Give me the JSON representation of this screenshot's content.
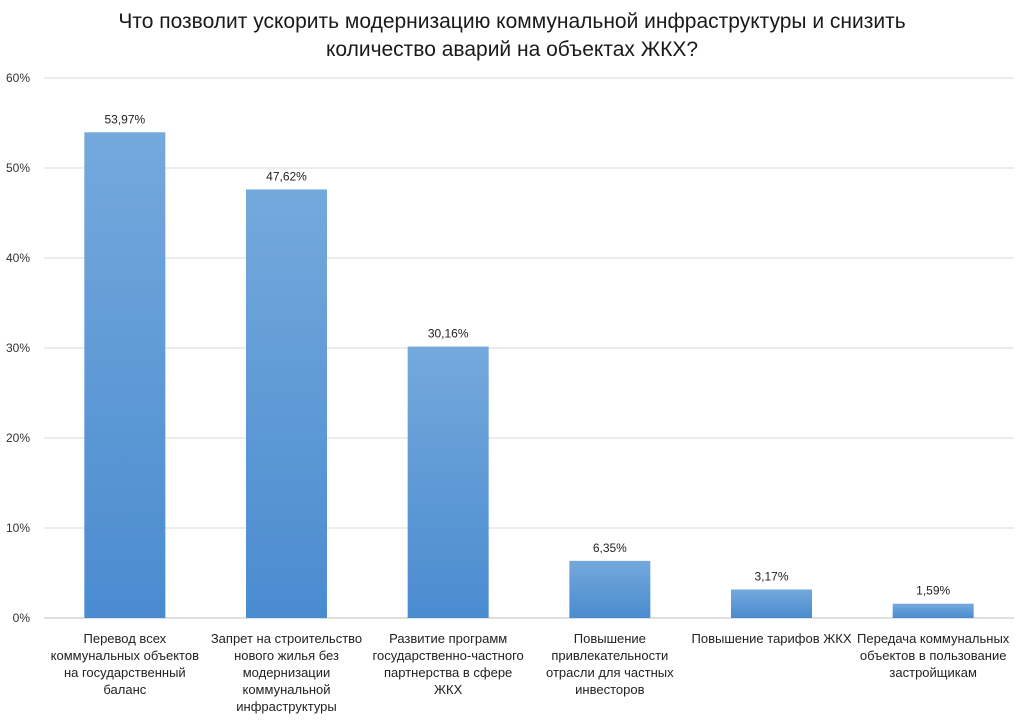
{
  "chart_data": {
    "type": "bar",
    "title_lines": [
      "Что позволит ускорить модернизацию коммунальной инфраструктуры и снизить",
      "количество аварий на объектах ЖКХ?"
    ],
    "categories": [
      "Перевод всех коммунальных объектов на государственный баланс",
      "Запрет на строительство нового жилья без модернизации коммунальной инфраструктуры",
      "Развитие программ государственно-частного партнерства в сфере ЖКХ",
      "Повышение привлекательности отрасли для частных инвесторов",
      "Повышение тарифов ЖКХ",
      "Передача коммунальных объектов в пользование застройщикам"
    ],
    "values": [
      53.97,
      47.62,
      30.16,
      6.35,
      3.17,
      1.59
    ],
    "data_labels": [
      "53,97%",
      "47,62%",
      "30,16%",
      "6,35%",
      "3,17%",
      "1,59%"
    ],
    "yticks": [
      "0%",
      "10%",
      "20%",
      "30%",
      "40%",
      "50%",
      "60%"
    ],
    "ylim": [
      0,
      60
    ],
    "grid": true,
    "bar_color": "#5b9bd5"
  }
}
